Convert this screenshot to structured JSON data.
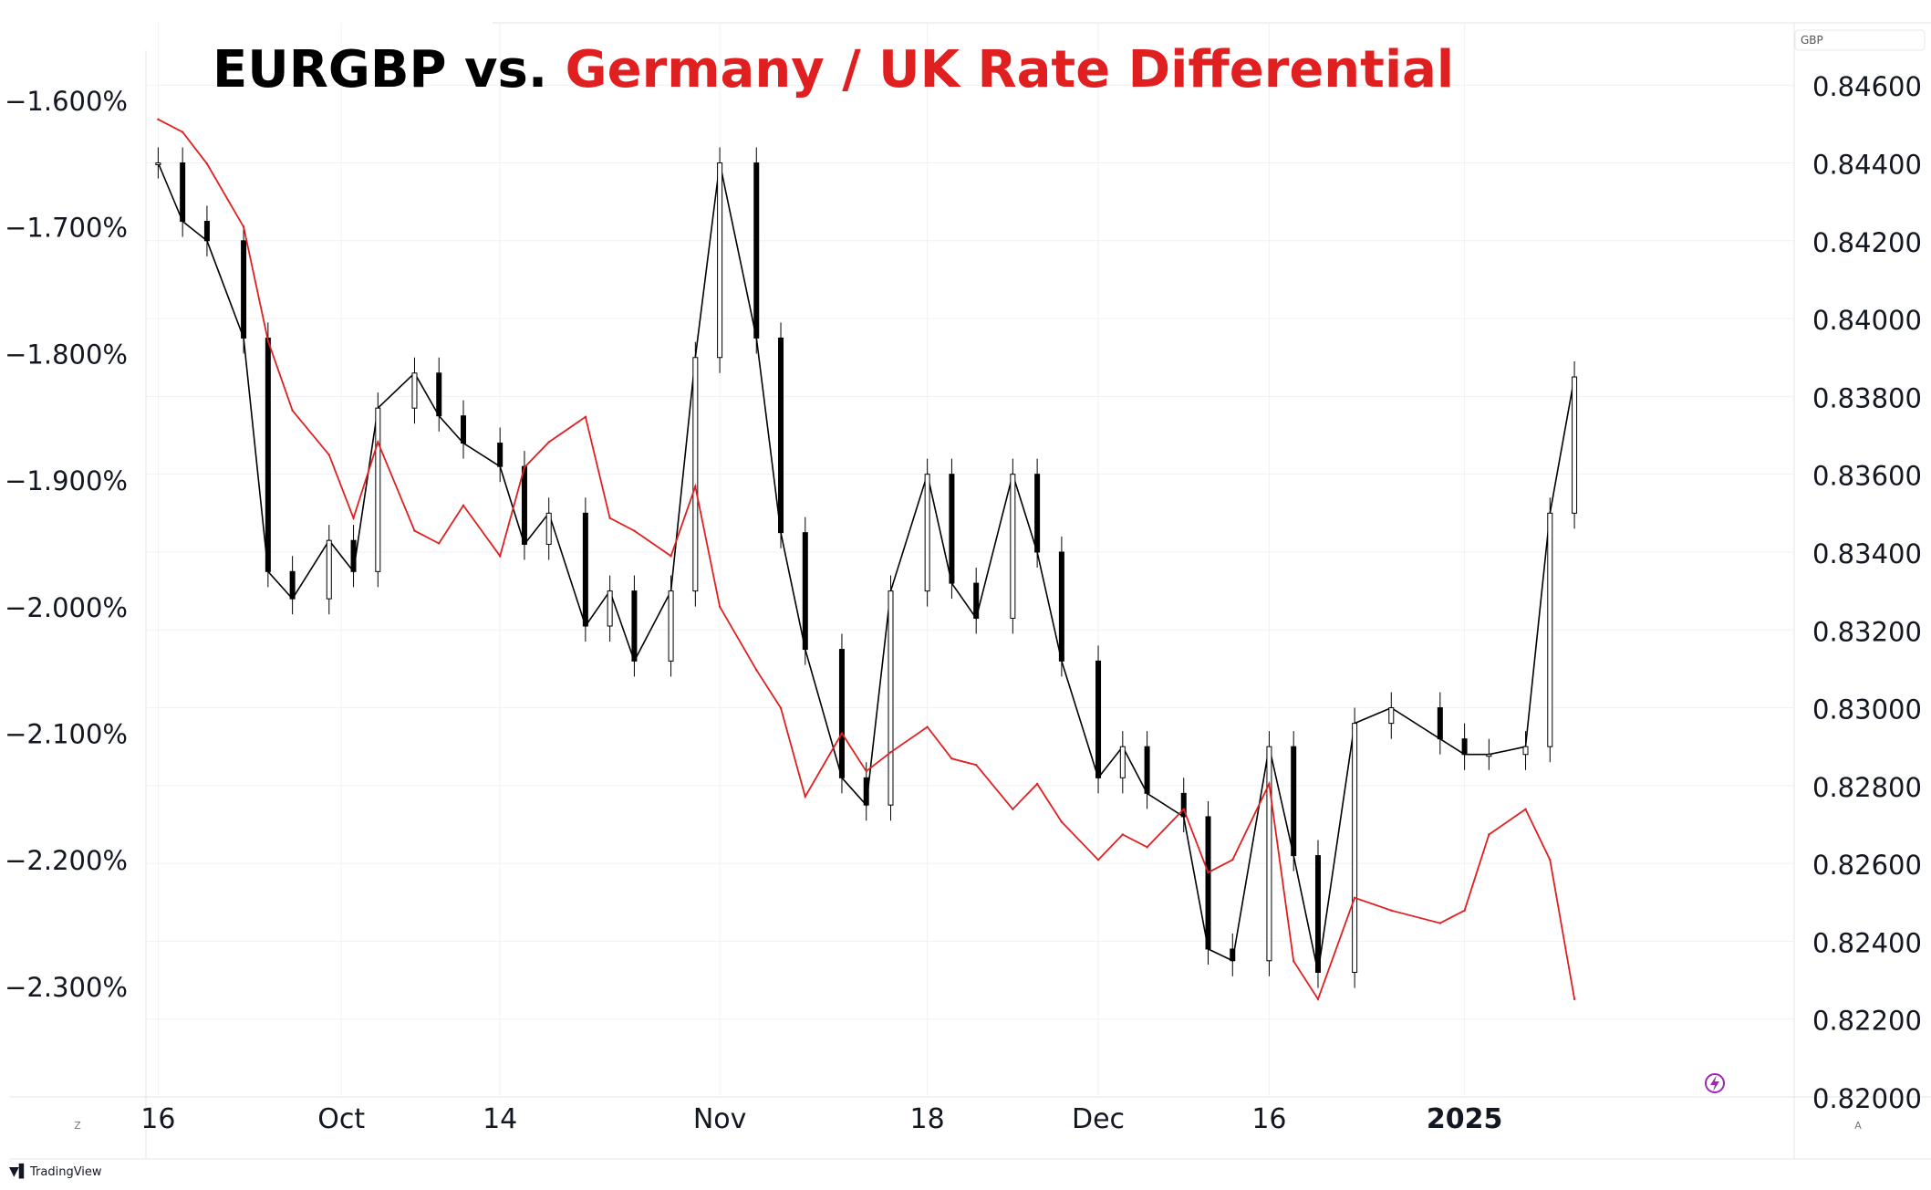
{
  "chart_data": {
    "type": "line",
    "title_parts": [
      {
        "text": "EURGBP vs. ",
        "color": "#000000"
      },
      {
        "text": "Germany / UK Rate Differential",
        "color": "#e02020"
      }
    ],
    "x_ticks": [
      {
        "label": "16",
        "date": "2024-09-16",
        "bold": false
      },
      {
        "label": "Oct",
        "date": "2024-10-01",
        "bold": false
      },
      {
        "label": "14",
        "date": "2024-10-14",
        "bold": false
      },
      {
        "label": "Nov",
        "date": "2024-11-01",
        "bold": false
      },
      {
        "label": "18",
        "date": "2024-11-18",
        "bold": false
      },
      {
        "label": "Dec",
        "date": "2024-12-02",
        "bold": false
      },
      {
        "label": "16",
        "date": "2024-12-16",
        "bold": false
      },
      {
        "label": "2025",
        "date": "2025-01-01",
        "bold": true
      }
    ],
    "xlim": [
      "2024-09-15",
      "2025-01-28"
    ],
    "left_axis": {
      "ticks": [
        "−1.600%",
        "−1.700%",
        "−1.800%",
        "−1.900%",
        "−2.000%",
        "−2.100%",
        "−2.200%",
        "−2.300%"
      ],
      "tick_values": [
        -1.6,
        -1.7,
        -1.8,
        -1.9,
        -2.0,
        -2.1,
        -2.2,
        -2.3
      ],
      "ylim": [
        -2.3873,
        -1.5387
      ]
    },
    "right_axis": {
      "label": "GBP",
      "ticks": [
        "0.84600",
        "0.84400",
        "0.84200",
        "0.84000",
        "0.83800",
        "0.83600",
        "0.83400",
        "0.83200",
        "0.83000",
        "0.82800",
        "0.82600",
        "0.82400",
        "0.82200",
        "0.82000"
      ],
      "tick_values": [
        0.846,
        0.844,
        0.842,
        0.84,
        0.838,
        0.836,
        0.834,
        0.832,
        0.83,
        0.828,
        0.826,
        0.824,
        0.822,
        0.82
      ],
      "ylim": [
        0.82,
        0.8476
      ]
    },
    "grid": true,
    "series": [
      {
        "name": "EURGBP",
        "axis": "right",
        "style": "candles",
        "color": "#000000",
        "x": [
          "2024-09-16",
          "2024-09-18",
          "2024-09-20",
          "2024-09-23",
          "2024-09-25",
          "2024-09-27",
          "2024-09-30",
          "2024-10-02",
          "2024-10-04",
          "2024-10-07",
          "2024-10-09",
          "2024-10-11",
          "2024-10-14",
          "2024-10-16",
          "2024-10-18",
          "2024-10-21",
          "2024-10-23",
          "2024-10-25",
          "2024-10-28",
          "2024-10-30",
          "2024-11-01",
          "2024-11-04",
          "2024-11-06",
          "2024-11-08",
          "2024-11-11",
          "2024-11-13",
          "2024-11-15",
          "2024-11-18",
          "2024-11-20",
          "2024-11-22",
          "2024-11-25",
          "2024-11-27",
          "2024-11-29",
          "2024-12-02",
          "2024-12-04",
          "2024-12-06",
          "2024-12-09",
          "2024-12-11",
          "2024-12-13",
          "2024-12-16",
          "2024-12-18",
          "2024-12-20",
          "2024-12-23",
          "2024-12-26",
          "2024-12-30",
          "2025-01-01",
          "2025-01-03",
          "2025-01-06",
          "2025-01-08",
          "2025-01-10"
        ],
        "values": [
          0.844,
          0.8425,
          0.842,
          0.8395,
          0.8335,
          0.8328,
          0.8343,
          0.8335,
          0.8377,
          0.8386,
          0.8375,
          0.8368,
          0.8362,
          0.8342,
          0.835,
          0.8321,
          0.833,
          0.8312,
          0.833,
          0.839,
          0.844,
          0.8395,
          0.8345,
          0.8315,
          0.8282,
          0.8275,
          0.833,
          0.836,
          0.8332,
          0.8323,
          0.836,
          0.834,
          0.8312,
          0.8282,
          0.829,
          0.8278,
          0.8272,
          0.8238,
          0.8235,
          0.829,
          0.8262,
          0.8232,
          0.8296,
          0.83,
          0.8292,
          0.8288,
          0.8288,
          0.829,
          0.835,
          0.8385
        ]
      },
      {
        "name": "Germany / UK Rate Differential",
        "axis": "left",
        "style": "line",
        "color": "#e02020",
        "x": [
          "2024-09-16",
          "2024-09-18",
          "2024-09-20",
          "2024-09-23",
          "2024-09-25",
          "2024-09-27",
          "2024-09-30",
          "2024-10-02",
          "2024-10-04",
          "2024-10-07",
          "2024-10-09",
          "2024-10-11",
          "2024-10-14",
          "2024-10-16",
          "2024-10-18",
          "2024-10-21",
          "2024-10-23",
          "2024-10-25",
          "2024-10-28",
          "2024-10-30",
          "2024-11-01",
          "2024-11-04",
          "2024-11-06",
          "2024-11-08",
          "2024-11-11",
          "2024-11-13",
          "2024-11-15",
          "2024-11-18",
          "2024-11-20",
          "2024-11-22",
          "2024-11-25",
          "2024-11-27",
          "2024-11-29",
          "2024-12-02",
          "2024-12-04",
          "2024-12-06",
          "2024-12-09",
          "2024-12-11",
          "2024-12-13",
          "2024-12-16",
          "2024-12-18",
          "2024-12-20",
          "2024-12-23",
          "2024-12-26",
          "2024-12-30",
          "2025-01-01",
          "2025-01-03",
          "2025-01-06",
          "2025-01-08",
          "2025-01-10"
        ],
        "values": [
          -1.615,
          -1.625,
          -1.65,
          -1.7,
          -1.79,
          -1.845,
          -1.88,
          -1.93,
          -1.87,
          -1.94,
          -1.95,
          -1.92,
          -1.96,
          -1.89,
          -1.87,
          -1.85,
          -1.93,
          -1.94,
          -1.96,
          -1.905,
          -2.0,
          -2.05,
          -2.08,
          -2.15,
          -2.1,
          -2.13,
          -2.115,
          -2.095,
          -2.12,
          -2.125,
          -2.16,
          -2.14,
          -2.17,
          -2.2,
          -2.18,
          -2.19,
          -2.16,
          -2.21,
          -2.2,
          -2.14,
          -2.28,
          -2.31,
          -2.23,
          -2.24,
          -2.25,
          -2.24,
          -2.18,
          -2.16,
          -2.2,
          -2.31
        ]
      }
    ]
  },
  "watermark": "TradingView",
  "corner_labels": {
    "left": "Z",
    "right": "A"
  },
  "badge_icon": "lightning-icon"
}
